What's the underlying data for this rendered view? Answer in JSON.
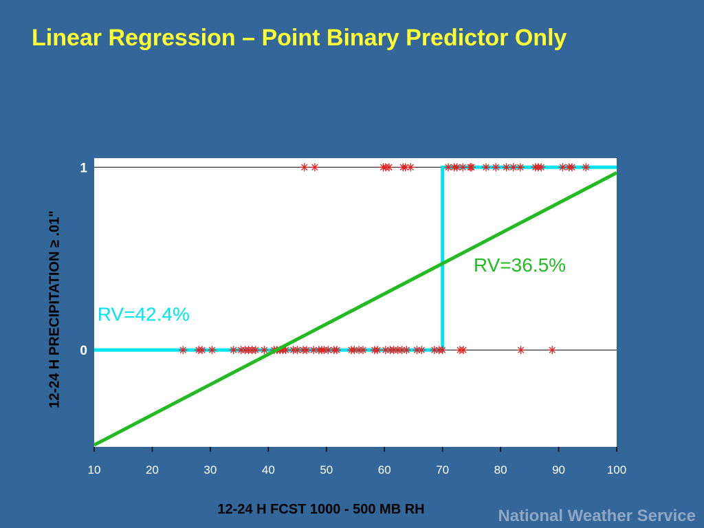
{
  "slide": {
    "title": "Linear Regression – Point Binary Predictor Only",
    "footer": "National Weather Service"
  },
  "colors": {
    "background": "#336699",
    "title": "#ffff33",
    "points": "#e02020",
    "step_fit": "#00e5ee",
    "linear_fit": "#22bb22",
    "footer": "#8fa7c2"
  },
  "chart_data": {
    "type": "scatter",
    "xlabel": "12-24 H FCST 1000 - 500 MB RH",
    "ylabel": "12-24 H PRECIPITATION ≥ .01\"",
    "xlim": [
      10,
      100
    ],
    "ylim": [
      -0.53,
      1.05
    ],
    "x_ticks": [
      10,
      20,
      30,
      40,
      50,
      60,
      70,
      80,
      90,
      100
    ],
    "y_ticks": [
      0,
      1
    ],
    "grid": false,
    "series": [
      {
        "role": "observations_y1",
        "marker": "asterisk",
        "y": 1,
        "x": [
          46.2,
          48.0,
          59.8,
          60.2,
          60.8,
          63.2,
          63.6,
          64.5,
          71.0,
          72.0,
          72.5,
          73.5,
          74.8,
          75.0,
          77.5,
          79.2,
          81.0,
          82.2,
          83.4,
          86.0,
          86.5,
          87.0,
          90.7,
          91.8,
          92.3,
          94.7
        ]
      },
      {
        "role": "observations_y0",
        "marker": "asterisk",
        "y": 0,
        "x": [
          25.3,
          28.0,
          28.6,
          30.3,
          34.0,
          35.3,
          36.0,
          36.6,
          37.2,
          37.8,
          39.3,
          41.0,
          41.5,
          42.0,
          42.5,
          43.0,
          44.3,
          45.0,
          46.0,
          46.6,
          47.8,
          48.7,
          49.2,
          49.6,
          50.3,
          51.3,
          51.8,
          54.3,
          54.8,
          55.6,
          56.3,
          58.3,
          58.8,
          60.2,
          61.0,
          61.6,
          62.3,
          63.0,
          63.8,
          65.6,
          66.4,
          68.6,
          69.4,
          70.0,
          73.0,
          73.6,
          83.5,
          88.9
        ]
      },
      {
        "role": "step_fit",
        "x": [
          10,
          70,
          70,
          100
        ],
        "y": [
          0,
          0,
          1,
          1
        ]
      },
      {
        "role": "linear_fit",
        "x": [
          10,
          100
        ],
        "y": [
          -0.52,
          0.97
        ]
      }
    ],
    "annotations": [
      {
        "text": "RV=42.4%",
        "x": 18.5,
        "y": 0.16,
        "color": "#00e5ee"
      },
      {
        "text": "RV=36.5%",
        "x": 83.3,
        "y": 0.43,
        "color": "#22bb22"
      }
    ]
  }
}
